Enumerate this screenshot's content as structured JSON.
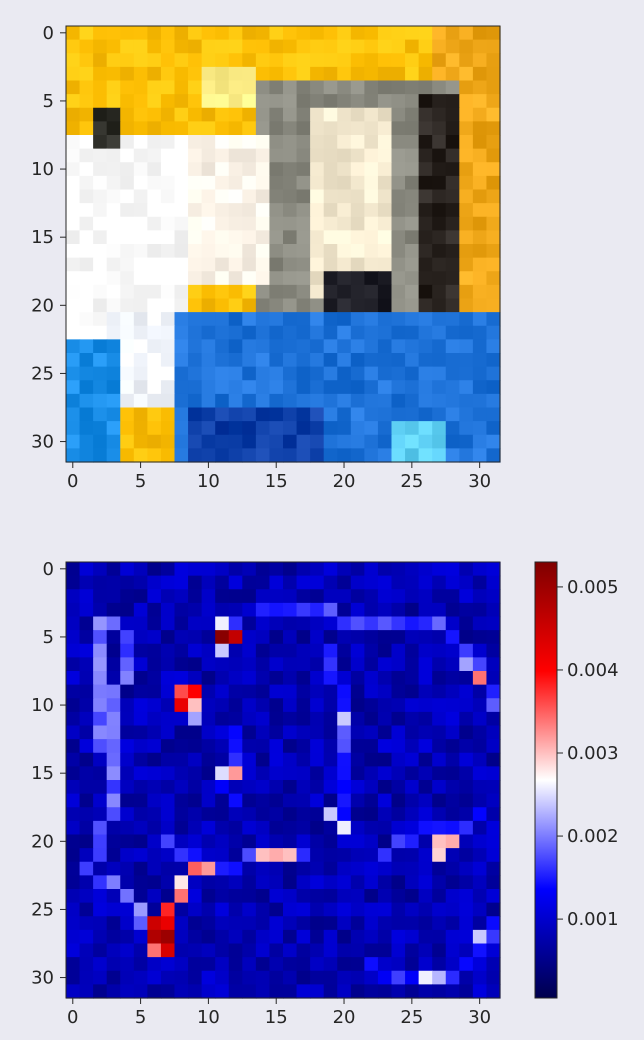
{
  "chart_data": [
    {
      "type": "heatmap",
      "subtype": "rgb-image",
      "title": "",
      "xlabel": "",
      "ylabel": "",
      "shape": [
        32,
        32
      ],
      "xlim": [
        -0.5,
        31.5
      ],
      "ylim": [
        31.5,
        -0.5
      ],
      "x_ticks": [
        "0",
        "5",
        "10",
        "15",
        "20",
        "25",
        "30"
      ],
      "y_ticks": [
        "0",
        "5",
        "10",
        "15",
        "20",
        "25",
        "30"
      ],
      "background_color": "#ffc107",
      "regions": [
        {
          "name": "sky-orange-right",
          "color": "#f0a81a",
          "rows": [
            0,
            21
          ],
          "cols": [
            27,
            31
          ]
        },
        {
          "name": "sun-spot",
          "color": "#ffef88",
          "rows": [
            3,
            5
          ],
          "cols": [
            10,
            13
          ]
        },
        {
          "name": "cat-head",
          "color": "#8a8a80",
          "rows": [
            4,
            20
          ],
          "cols": [
            14,
            28
          ]
        },
        {
          "name": "cat-dark-outline",
          "color": "#2a2420",
          "rows": [
            5,
            20
          ],
          "cols": [
            26,
            28
          ]
        },
        {
          "name": "cat-face-light",
          "color": "#f5ead0",
          "rows": [
            6,
            19
          ],
          "cols": [
            18,
            23
          ]
        },
        {
          "name": "cat-shoulder-dark",
          "color": "#202028",
          "rows": [
            18,
            21
          ],
          "cols": [
            19,
            23
          ]
        },
        {
          "name": "paws-white",
          "color": "#fff6ea",
          "rows": [
            8,
            18
          ],
          "cols": [
            8,
            14
          ]
        },
        {
          "name": "blanket-white",
          "color": "#ffffff",
          "rows": [
            8,
            23
          ],
          "cols": [
            0,
            8
          ]
        },
        {
          "name": "blanket-white-bottom",
          "color": "#f4f8ff",
          "rows": [
            21,
            27
          ],
          "cols": [
            3,
            8
          ]
        },
        {
          "name": "left-mark-dark",
          "color": "#30302a",
          "rows": [
            6,
            8
          ],
          "cols": [
            2,
            3
          ]
        },
        {
          "name": "sea-blue",
          "color": "#1f73d9",
          "rows": [
            21,
            31
          ],
          "cols": [
            8,
            31
          ]
        },
        {
          "name": "sea-blue-left",
          "color": "#1a8ee8",
          "rows": [
            23,
            31
          ],
          "cols": [
            0,
            3
          ]
        },
        {
          "name": "sea-deep",
          "color": "#0d3fa8",
          "rows": [
            28,
            31
          ],
          "cols": [
            9,
            18
          ]
        },
        {
          "name": "sea-cyan-spot",
          "color": "#5fd0f5",
          "rows": [
            29,
            31
          ],
          "cols": [
            24,
            27
          ]
        }
      ]
    },
    {
      "type": "heatmap",
      "subtype": "saliency-map",
      "colormap": "seismic",
      "title": "",
      "xlabel": "",
      "ylabel": "",
      "shape": [
        32,
        32
      ],
      "xlim": [
        -0.5,
        31.5
      ],
      "ylim": [
        31.5,
        -0.5
      ],
      "x_ticks": [
        "0",
        "5",
        "10",
        "15",
        "20",
        "25",
        "30"
      ],
      "y_ticks": [
        "0",
        "5",
        "10",
        "15",
        "20",
        "25",
        "30"
      ],
      "colorbar": {
        "range": [
          5e-05,
          0.0053
        ],
        "ticks": [
          0.001,
          0.002,
          0.003,
          0.004,
          0.005
        ],
        "tick_labels": [
          "0.001",
          "0.002",
          "0.003",
          "0.004",
          "0.005"
        ]
      },
      "base_value": 0.0009,
      "hotspots": [
        {
          "row": 4,
          "col": 11,
          "value": 0.0026
        },
        {
          "row": 4,
          "col": 12,
          "value": 0.0016
        },
        {
          "row": 5,
          "col": 11,
          "value": 0.0052
        },
        {
          "row": 5,
          "col": 12,
          "value": 0.0046
        },
        {
          "row": 6,
          "col": 11,
          "value": 0.0024
        },
        {
          "row": 9,
          "col": 8,
          "value": 0.0036
        },
        {
          "row": 9,
          "col": 9,
          "value": 0.004
        },
        {
          "row": 10,
          "col": 8,
          "value": 0.0042
        },
        {
          "row": 10,
          "col": 9,
          "value": 0.003
        },
        {
          "row": 11,
          "col": 9,
          "value": 0.0022
        },
        {
          "row": 15,
          "col": 11,
          "value": 0.0025
        },
        {
          "row": 15,
          "col": 12,
          "value": 0.0032
        },
        {
          "row": 18,
          "col": 19,
          "value": 0.0024
        },
        {
          "row": 20,
          "col": 27,
          "value": 0.003
        },
        {
          "row": 20,
          "col": 28,
          "value": 0.0031
        },
        {
          "row": 21,
          "col": 27,
          "value": 0.0029
        },
        {
          "row": 21,
          "col": 14,
          "value": 0.003
        },
        {
          "row": 21,
          "col": 15,
          "value": 0.0031
        },
        {
          "row": 21,
          "col": 16,
          "value": 0.003
        },
        {
          "row": 22,
          "col": 9,
          "value": 0.0035
        },
        {
          "row": 22,
          "col": 10,
          "value": 0.0032
        },
        {
          "row": 23,
          "col": 8,
          "value": 0.0028
        },
        {
          "row": 24,
          "col": 8,
          "value": 0.0034
        },
        {
          "row": 25,
          "col": 7,
          "value": 0.0038
        },
        {
          "row": 26,
          "col": 6,
          "value": 0.0045
        },
        {
          "row": 26,
          "col": 7,
          "value": 0.0042
        },
        {
          "row": 27,
          "col": 6,
          "value": 0.0048
        },
        {
          "row": 27,
          "col": 7,
          "value": 0.005
        },
        {
          "row": 28,
          "col": 6,
          "value": 0.0034
        },
        {
          "row": 28,
          "col": 7,
          "value": 0.0044
        },
        {
          "row": 8,
          "col": 30,
          "value": 0.0034
        },
        {
          "row": 7,
          "col": 29,
          "value": 0.0022
        },
        {
          "row": 27,
          "col": 30,
          "value": 0.0024
        },
        {
          "row": 30,
          "col": 26,
          "value": 0.0026
        },
        {
          "row": 30,
          "col": 27,
          "value": 0.0023
        },
        {
          "row": 11,
          "col": 20,
          "value": 0.0024
        },
        {
          "row": 19,
          "col": 20,
          "value": 0.0026
        }
      ],
      "edges": [
        {
          "value": 0.0019,
          "points": [
            [
              4,
              2
            ],
            [
              12,
              2
            ],
            [
              16,
              3
            ],
            [
              20,
              2
            ],
            [
              22,
              1
            ],
            [
              24,
              4
            ],
            [
              26,
              5
            ]
          ]
        },
        {
          "value": 0.0018,
          "points": [
            [
              4,
              3
            ],
            [
              6,
              4
            ],
            [
              10,
              3
            ],
            [
              14,
              3
            ]
          ]
        },
        {
          "value": 0.0017,
          "points": [
            [
              3,
              14
            ],
            [
              3,
              18
            ],
            [
              4,
              21
            ],
            [
              4,
              27
            ],
            [
              6,
              29
            ],
            [
              8,
              30
            ],
            [
              10,
              31
            ]
          ]
        },
        {
          "value": 0.0016,
          "points": [
            [
              6,
              19
            ],
            [
              12,
              20
            ],
            [
              19,
              20
            ]
          ]
        },
        {
          "value": 0.0016,
          "points": [
            [
              20,
              7
            ],
            [
              21,
              9
            ],
            [
              22,
              11
            ],
            [
              21,
              14
            ],
            [
              21,
              17
            ]
          ]
        },
        {
          "value": 0.0015,
          "points": [
            [
              21,
              23
            ],
            [
              19,
              26
            ],
            [
              19,
              28
            ],
            [
              18,
              30
            ]
          ]
        },
        {
          "value": 0.0015,
          "points": [
            [
              29,
              22
            ],
            [
              30,
              24
            ],
            [
              30,
              28
            ],
            [
              28,
              30
            ],
            [
              26,
              31
            ]
          ]
        },
        {
          "value": 0.0014,
          "points": [
            [
              12,
              12
            ],
            [
              14,
              12
            ],
            [
              16,
              11
            ],
            [
              17,
              12
            ]
          ]
        }
      ]
    }
  ]
}
